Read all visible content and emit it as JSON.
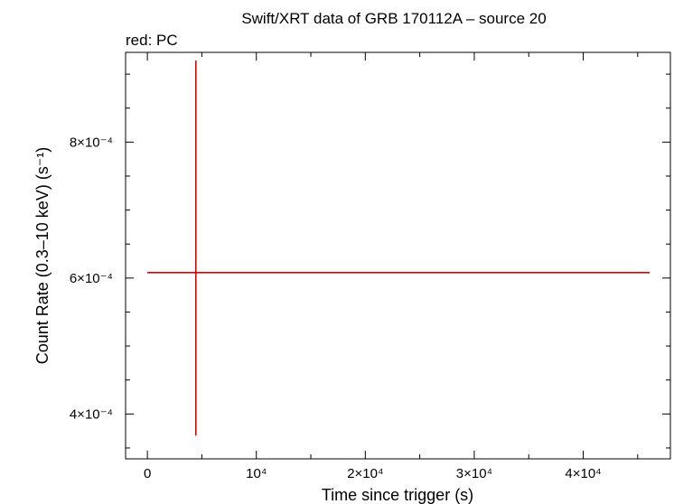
{
  "chart_data": {
    "type": "scatter",
    "title": "Swift/XRT data of GRB 170112A – source 20",
    "subtitle": "red: PC",
    "xlabel": "Time since trigger (s)",
    "ylabel": "Count Rate (0.3–10 keV) (s⁻¹)",
    "xlim": [
      -2000,
      48000
    ],
    "ylim": [
      0.000334,
      0.000932
    ],
    "x_ticks": [
      {
        "value": 0,
        "label": "0"
      },
      {
        "value": 10000,
        "label": "10⁴"
      },
      {
        "value": 20000,
        "label": "2×10⁴"
      },
      {
        "value": 30000,
        "label": "3×10⁴"
      },
      {
        "value": 40000,
        "label": "4×10⁴"
      }
    ],
    "y_ticks": [
      {
        "value": 0.0004,
        "label": "4×10⁻⁴"
      },
      {
        "value": 0.0006,
        "label": "6×10⁻⁴"
      },
      {
        "value": 0.0008,
        "label": "8×10⁻⁴"
      }
    ],
    "grid": false,
    "series": [
      {
        "name": "PC",
        "color": "#e00000",
        "points": [
          {
            "x": 4450,
            "y": 0.000608,
            "x_lo": 0,
            "x_hi": 46100,
            "y_lo": 0.000368,
            "y_hi": 0.00092
          }
        ]
      }
    ]
  }
}
